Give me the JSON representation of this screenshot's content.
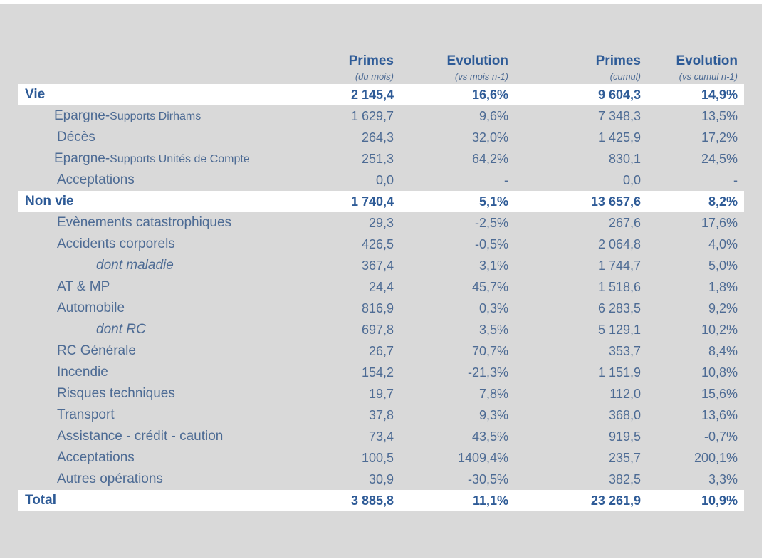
{
  "table": {
    "columns": [
      {
        "title": "Primes",
        "subtitle": "(du mois)"
      },
      {
        "title": "Evolution",
        "subtitle": "(vs mois n-1)"
      },
      {
        "title": "Primes",
        "subtitle": "(cumul)"
      },
      {
        "title": "Evolution",
        "subtitle": "(vs cumul n-1)"
      }
    ],
    "rows": [
      {
        "style": "group",
        "label": "Vie",
        "cells": [
          "2 145,4",
          "16,6%",
          "9 604,3",
          "14,9%"
        ]
      },
      {
        "style": "item",
        "label": [
          "Epargne-",
          "Supports Dirhams"
        ],
        "cells": [
          "1 629,7",
          "9,6%",
          "7 348,3",
          "13,5%"
        ]
      },
      {
        "style": "item",
        "label": "Décès",
        "cells": [
          "264,3",
          "32,0%",
          "1 425,9",
          "17,2%"
        ]
      },
      {
        "style": "item",
        "label": [
          "Epargne-",
          "Supports Unités de Compte"
        ],
        "cells": [
          "251,3",
          "64,2%",
          "830,1",
          "24,5%"
        ]
      },
      {
        "style": "item",
        "label": "Acceptations",
        "cells": [
          "0,0",
          "-",
          "0,0",
          "-"
        ]
      },
      {
        "style": "group",
        "label": "Non vie",
        "cells": [
          "1 740,4",
          "5,1%",
          "13 657,6",
          "8,2%"
        ]
      },
      {
        "style": "item",
        "label": "Evènements catastrophiques",
        "cells": [
          "29,3",
          "-2,5%",
          "267,6",
          "17,6%"
        ]
      },
      {
        "style": "item",
        "label": "Accidents corporels",
        "cells": [
          "426,5",
          "-0,5%",
          "2 064,8",
          "4,0%"
        ]
      },
      {
        "style": "sub",
        "label": "dont maladie",
        "cells": [
          "367,4",
          "3,1%",
          "1 744,7",
          "5,0%"
        ]
      },
      {
        "style": "item",
        "label": "AT & MP",
        "cells": [
          "24,4",
          "45,7%",
          "1 518,6",
          "1,8%"
        ]
      },
      {
        "style": "item",
        "label": "Automobile",
        "cells": [
          "816,9",
          "0,3%",
          "6 283,5",
          "9,2%"
        ]
      },
      {
        "style": "sub",
        "label": "dont RC",
        "cells": [
          "697,8",
          "3,5%",
          "5 129,1",
          "10,2%"
        ]
      },
      {
        "style": "item",
        "label": "RC Générale",
        "cells": [
          "26,7",
          "70,7%",
          "353,7",
          "8,4%"
        ]
      },
      {
        "style": "item",
        "label": "Incendie",
        "cells": [
          "154,2",
          "-21,3%",
          "1 151,9",
          "10,8%"
        ]
      },
      {
        "style": "item",
        "label": "Risques techniques",
        "cells": [
          "19,7",
          "7,8%",
          "112,0",
          "15,6%"
        ]
      },
      {
        "style": "item",
        "label": "Transport",
        "cells": [
          "37,8",
          "9,3%",
          "368,0",
          "13,6%"
        ]
      },
      {
        "style": "item",
        "label": "Assistance - crédit - caution",
        "cells": [
          "73,4",
          "43,5%",
          "919,5",
          "-0,7%"
        ]
      },
      {
        "style": "item",
        "label": "Acceptations",
        "cells": [
          "100,5",
          "1409,4%",
          "235,7",
          "200,1%"
        ]
      },
      {
        "style": "item",
        "label": "Autres opérations",
        "cells": [
          "30,9",
          "-30,5%",
          "382,5",
          "3,3%"
        ]
      },
      {
        "style": "group",
        "label": "Total",
        "cells": [
          "3 885,8",
          "11,1%",
          "23 261,9",
          "10,9%"
        ]
      }
    ]
  }
}
